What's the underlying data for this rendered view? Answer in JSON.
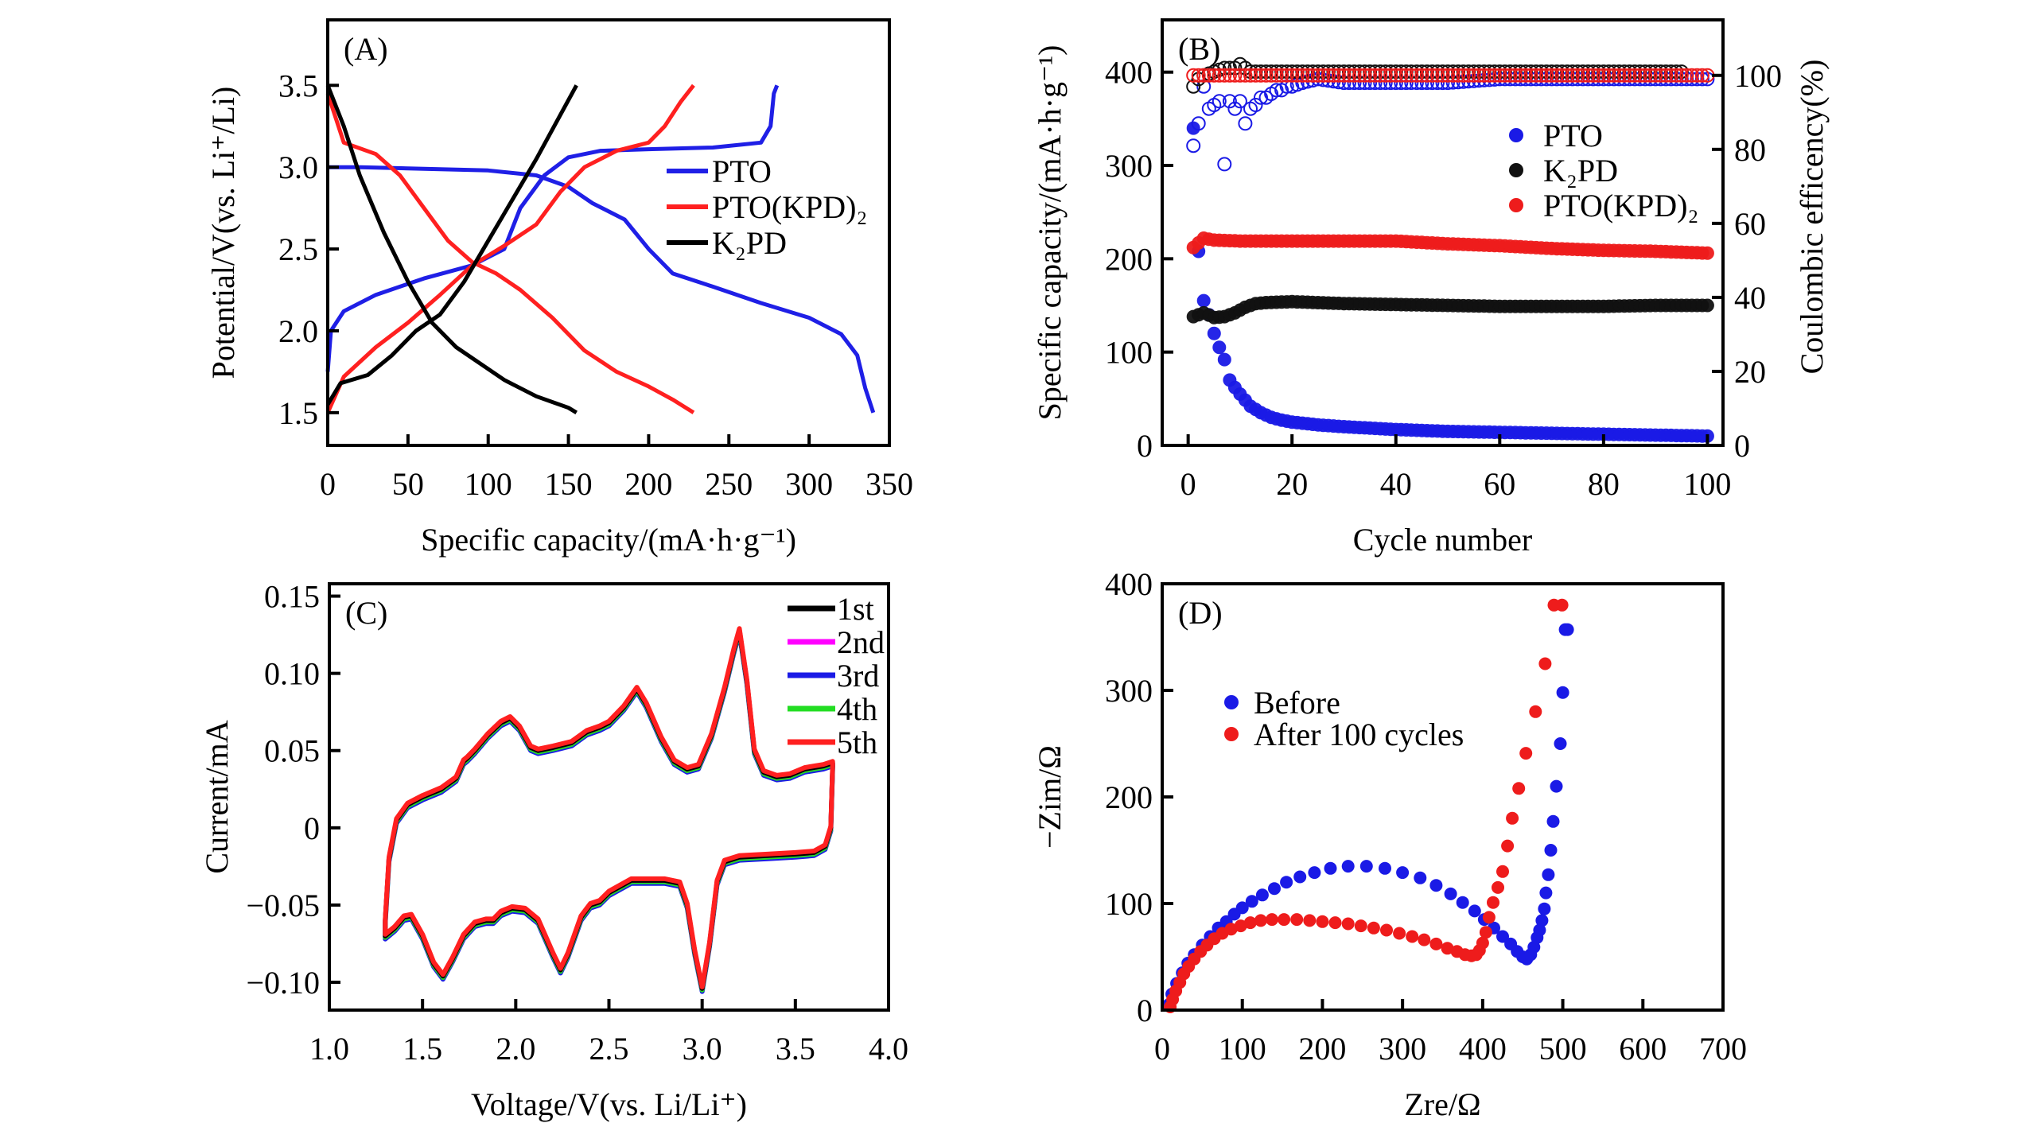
{
  "chart_data": [
    {
      "id": "A",
      "type": "line",
      "panel_label": "(A)",
      "xlabel": "Specific capacity/(mA·h·g⁻¹)",
      "ylabel": "Potential/V(vs. Li⁺/Li)",
      "xlim": [
        0,
        350
      ],
      "ylim": [
        1.3,
        3.9
      ],
      "xticks": [
        0,
        50,
        100,
        150,
        200,
        250,
        300,
        350
      ],
      "xtick_labels": [
        "0",
        "50",
        "100",
        "150",
        "200",
        "250",
        "300",
        "350"
      ],
      "yticks": [
        1.5,
        2.0,
        2.5,
        3.0,
        3.5
      ],
      "ytick_labels": [
        "1.5",
        "2.0",
        "2.5",
        "3.0",
        "3.5"
      ],
      "legend": "center-right",
      "series": [
        {
          "name": "PTO",
          "label": "PTO",
          "color": "#1f1fe6",
          "segment": "discharge",
          "x": [
            0,
            20,
            60,
            100,
            130,
            150,
            165,
            185,
            200,
            215,
            240,
            270,
            300,
            320,
            330,
            335,
            340
          ],
          "y": [
            3.0,
            3.0,
            2.99,
            2.98,
            2.95,
            2.88,
            2.78,
            2.68,
            2.5,
            2.35,
            2.27,
            2.17,
            2.08,
            1.98,
            1.85,
            1.65,
            1.5
          ]
        },
        {
          "name": "PTO-charge",
          "label": "",
          "color": "#1f1fe6",
          "segment": "charge",
          "x": [
            0,
            2,
            10,
            30,
            60,
            90,
            110,
            120,
            135,
            150,
            170,
            200,
            240,
            270,
            276,
            278,
            280
          ],
          "y": [
            1.75,
            2.0,
            2.12,
            2.22,
            2.32,
            2.4,
            2.5,
            2.75,
            2.95,
            3.06,
            3.1,
            3.11,
            3.12,
            3.15,
            3.25,
            3.45,
            3.5
          ]
        },
        {
          "name": "PTO(KPD)2",
          "label": "PTO(KPD)₂",
          "color": "#ff2020",
          "segment": "discharge",
          "x": [
            0,
            10,
            30,
            45,
            60,
            75,
            90,
            105,
            120,
            140,
            160,
            180,
            200,
            215,
            228
          ],
          "y": [
            3.45,
            3.15,
            3.08,
            2.95,
            2.75,
            2.55,
            2.42,
            2.35,
            2.25,
            2.08,
            1.88,
            1.75,
            1.66,
            1.58,
            1.5
          ]
        },
        {
          "name": "PTO(KPD)2-charge",
          "label": "",
          "color": "#ff2020",
          "segment": "charge",
          "x": [
            0,
            10,
            30,
            50,
            70,
            90,
            110,
            130,
            145,
            160,
            180,
            200,
            210,
            220,
            228
          ],
          "y": [
            1.5,
            1.72,
            1.9,
            2.05,
            2.22,
            2.4,
            2.52,
            2.65,
            2.85,
            3.0,
            3.1,
            3.15,
            3.25,
            3.4,
            3.5
          ]
        },
        {
          "name": "K2PD",
          "label": "K₂PD",
          "color": "#000000",
          "segment": "discharge",
          "x": [
            0,
            10,
            20,
            35,
            50,
            65,
            80,
            95,
            110,
            130,
            150,
            155
          ],
          "y": [
            3.5,
            3.25,
            2.95,
            2.6,
            2.3,
            2.05,
            1.9,
            1.8,
            1.7,
            1.6,
            1.53,
            1.5
          ]
        },
        {
          "name": "K2PD-charge",
          "label": "",
          "color": "#000000",
          "segment": "charge",
          "x": [
            0,
            8,
            25,
            40,
            55,
            70,
            85,
            100,
            115,
            130,
            145,
            155
          ],
          "y": [
            1.55,
            1.68,
            1.73,
            1.85,
            2.0,
            2.1,
            2.3,
            2.55,
            2.8,
            3.05,
            3.32,
            3.5
          ]
        }
      ]
    },
    {
      "id": "B",
      "type": "scatter",
      "panel_label": "(B)",
      "xlabel": "Cycle number",
      "ylabel": "Specific capacity/(mA·h·g⁻¹)",
      "ylabel_right": "Coulombic efficency(%)",
      "xlim": [
        -5,
        103
      ],
      "ylim": [
        0,
        456
      ],
      "ylim_right": [
        0,
        115
      ],
      "xticks": [
        0,
        20,
        40,
        60,
        80,
        100
      ],
      "xtick_labels": [
        "0",
        "20",
        "40",
        "60",
        "80",
        "100"
      ],
      "yticks": [
        0,
        100,
        200,
        300,
        400
      ],
      "ytick_labels": [
        "0",
        "100",
        "200",
        "300",
        "400"
      ],
      "yticks_right": [
        0,
        20,
        40,
        60,
        80,
        100
      ],
      "ytick_labels_right": [
        "0",
        "20",
        "40",
        "60",
        "80",
        "100"
      ],
      "legend": "center-right",
      "legend_entries": [
        {
          "label": "PTO",
          "color": "#1a1ae6"
        },
        {
          "label": "K₂PD",
          "color": "#111111"
        },
        {
          "label": "PTO(KPD)₂",
          "color": "#ee1c1c"
        }
      ],
      "capacity_series": [
        {
          "name": "PTO",
          "color": "#1a1ae6",
          "x": [
            1,
            2,
            3,
            4,
            5,
            6,
            7,
            8,
            9,
            10,
            12,
            14,
            16,
            18,
            20,
            25,
            30,
            40,
            50,
            60,
            70,
            80,
            90,
            100
          ],
          "y": [
            340,
            208,
            155,
            140,
            120,
            105,
            92,
            70,
            62,
            55,
            42,
            35,
            30,
            27,
            25,
            22,
            20,
            17,
            15,
            14,
            13,
            12,
            11,
            10
          ]
        },
        {
          "name": "K2PD",
          "color": "#111111",
          "x": [
            1,
            3,
            5,
            7,
            9,
            11,
            13,
            15,
            20,
            25,
            30,
            40,
            50,
            60,
            70,
            80,
            90,
            100
          ],
          "y": [
            138,
            142,
            137,
            138,
            142,
            148,
            152,
            153,
            154,
            153,
            152,
            151,
            150,
            149,
            149,
            149,
            150,
            150
          ]
        },
        {
          "name": "PTO(KPD)2",
          "color": "#ee1c1c",
          "x": [
            1,
            3,
            5,
            10,
            20,
            30,
            40,
            50,
            60,
            70,
            80,
            90,
            100
          ],
          "y": [
            212,
            222,
            220,
            219,
            219,
            219,
            219,
            216,
            214,
            211,
            209,
            208,
            206
          ]
        }
      ],
      "efficiency_series": [
        {
          "name": "PTO-CE",
          "color": "#1a1ae6",
          "x": [
            1,
            2,
            3,
            4,
            5,
            6,
            7,
            8,
            9,
            10,
            11,
            12,
            13,
            14,
            15,
            16,
            17,
            18,
            19,
            20,
            22,
            25,
            30,
            40,
            50,
            60,
            70,
            80,
            90,
            100
          ],
          "y": [
            81,
            87,
            97,
            91,
            92,
            93,
            76,
            93,
            91,
            93,
            87,
            91,
            92,
            94,
            94,
            95,
            96,
            96,
            97,
            97,
            98,
            99,
            98,
            98,
            98,
            99,
            99,
            99,
            99,
            99
          ]
        },
        {
          "name": "K2PD-CE",
          "color": "#111111",
          "x": [
            1,
            2,
            3,
            5,
            7,
            9,
            10,
            12,
            15,
            20,
            30,
            40,
            50,
            60,
            70,
            80,
            90,
            95
          ],
          "y": [
            97,
            99,
            100,
            101,
            102,
            102,
            103,
            101,
            101,
            101,
            101,
            101,
            101,
            101,
            101,
            101,
            101,
            101
          ]
        },
        {
          "name": "PTO(KPD)2-CE",
          "color": "#ee1c1c",
          "x": [
            1,
            3,
            5,
            10,
            20,
            30,
            40,
            50,
            60,
            70,
            80,
            90,
            100
          ],
          "y": [
            100,
            100,
            100,
            100,
            100,
            100,
            100,
            100,
            100,
            100,
            100,
            100,
            100
          ]
        }
      ]
    },
    {
      "id": "C",
      "type": "line",
      "panel_label": "(C)",
      "xlabel": "Voltage/V(vs. Li/Li⁺)",
      "ylabel": "Current/mA",
      "xlim": [
        1.0,
        4.0
      ],
      "ylim": [
        -0.118,
        0.158
      ],
      "xticks": [
        1.0,
        1.5,
        2.0,
        2.5,
        3.0,
        3.5,
        4.0
      ],
      "xtick_labels": [
        "1.0",
        "1.5",
        "2.0",
        "2.5",
        "3.0",
        "3.5",
        "4.0"
      ],
      "yticks": [
        -0.1,
        -0.05,
        0,
        0.05,
        0.1,
        0.15
      ],
      "ytick_labels": [
        "−0.10",
        "−0.05",
        "0",
        "0.05",
        "0.10",
        "0.15"
      ],
      "legend": "top-right",
      "cycle_path": {
        "anodic_x": [
          1.3,
          1.32,
          1.36,
          1.42,
          1.5,
          1.6,
          1.68,
          1.72,
          1.74,
          1.78,
          1.85,
          1.92,
          1.97,
          2.02,
          2.08,
          2.12,
          2.2,
          2.3,
          2.38,
          2.45,
          2.5,
          2.58,
          2.65,
          2.7,
          2.78,
          2.85,
          2.92,
          2.98,
          3.05,
          3.12,
          3.17,
          3.2,
          3.24,
          3.28,
          3.33,
          3.4,
          3.47,
          3.55,
          3.65,
          3.7
        ],
        "anodic_y": [
          -0.06,
          -0.02,
          0.005,
          0.015,
          0.02,
          0.025,
          0.032,
          0.043,
          0.045,
          0.05,
          0.06,
          0.068,
          0.071,
          0.065,
          0.052,
          0.05,
          0.052,
          0.055,
          0.062,
          0.065,
          0.068,
          0.078,
          0.09,
          0.08,
          0.058,
          0.043,
          0.038,
          0.04,
          0.06,
          0.09,
          0.115,
          0.128,
          0.095,
          0.05,
          0.036,
          0.033,
          0.034,
          0.038,
          0.04,
          0.042
        ],
        "cathodic_x": [
          3.7,
          3.69,
          3.66,
          3.6,
          3.5,
          3.35,
          3.2,
          3.12,
          3.08,
          3.04,
          3.0,
          2.96,
          2.92,
          2.88,
          2.8,
          2.7,
          2.62,
          2.5,
          2.45,
          2.4,
          2.35,
          2.28,
          2.24,
          2.2,
          2.12,
          2.05,
          1.98,
          1.92,
          1.88,
          1.84,
          1.78,
          1.72,
          1.66,
          1.61,
          1.56,
          1.5,
          1.44,
          1.4,
          1.35,
          1.3
        ],
        "cathodic_y": [
          0.04,
          0.0,
          -0.012,
          -0.016,
          -0.017,
          -0.018,
          -0.019,
          -0.022,
          -0.035,
          -0.075,
          -0.104,
          -0.08,
          -0.05,
          -0.036,
          -0.034,
          -0.034,
          -0.034,
          -0.042,
          -0.048,
          -0.05,
          -0.058,
          -0.082,
          -0.092,
          -0.082,
          -0.06,
          -0.053,
          -0.052,
          -0.055,
          -0.06,
          -0.06,
          -0.062,
          -0.07,
          -0.085,
          -0.096,
          -0.088,
          -0.07,
          -0.057,
          -0.058,
          -0.065,
          -0.07
        ]
      },
      "series": [
        {
          "name": "1st",
          "label": "1st",
          "color": "#000000",
          "dy": 0.0
        },
        {
          "name": "2nd",
          "label": "2nd",
          "color": "#ff00ff",
          "dy": 0.0
        },
        {
          "name": "3rd",
          "label": "3rd",
          "color": "#1a1ae6",
          "dy": -0.002
        },
        {
          "name": "4th",
          "label": "4th",
          "color": "#22dd22",
          "dy": -0.001
        },
        {
          "name": "5th",
          "label": "5th",
          "color": "#ff2020",
          "dy": 0.001
        }
      ]
    },
    {
      "id": "D",
      "type": "scatter",
      "panel_label": "(D)",
      "xlabel": "Zre/Ω",
      "ylabel": "−Zim/Ω",
      "xlim": [
        0,
        700
      ],
      "ylim": [
        0,
        400
      ],
      "xticks": [
        0,
        100,
        200,
        300,
        400,
        500,
        600,
        700
      ],
      "xtick_labels": [
        "0",
        "100",
        "200",
        "300",
        "400",
        "500",
        "600",
        "700"
      ],
      "yticks": [
        0,
        100,
        200,
        300,
        400
      ],
      "ytick_labels": [
        "0",
        "100",
        "200",
        "300",
        "400"
      ],
      "legend": "top-left",
      "series": [
        {
          "name": "Before",
          "label": "Before",
          "color": "#1a1ae6",
          "x": [
            8,
            12,
            18,
            25,
            32,
            40,
            50,
            60,
            70,
            80,
            90,
            100,
            112,
            125,
            140,
            155,
            172,
            190,
            210,
            232,
            255,
            278,
            300,
            322,
            342,
            360,
            375,
            390,
            402,
            414,
            425,
            435,
            443,
            450,
            455,
            460,
            464,
            468,
            471,
            474,
            477,
            479,
            482,
            485,
            488,
            492,
            497,
            500,
            503,
            506
          ],
          "y": [
            5,
            15,
            25,
            35,
            44,
            52,
            61,
            69,
            77,
            83,
            90,
            96,
            102,
            108,
            114,
            120,
            125,
            129,
            133,
            135,
            135,
            133,
            129,
            124,
            117,
            109,
            101,
            93,
            85,
            77,
            69,
            62,
            55,
            50,
            48,
            52,
            59,
            68,
            75,
            84,
            95,
            110,
            127,
            150,
            177,
            210,
            250,
            298,
            357,
            357
          ]
        },
        {
          "name": "After 100 cycles",
          "label": "After 100 cycles",
          "color": "#ee1c1c",
          "x": [
            10,
            13,
            17,
            22,
            27,
            33,
            40,
            48,
            56,
            65,
            75,
            86,
            98,
            110,
            123,
            137,
            152,
            168,
            184,
            200,
            216,
            232,
            248,
            264,
            280,
            296,
            312,
            327,
            342,
            356,
            368,
            378,
            386,
            392,
            396,
            400,
            404,
            408,
            413,
            419,
            425,
            431,
            437,
            445,
            454,
            466,
            478,
            489,
            499
          ],
          "y": [
            3,
            10,
            18,
            26,
            34,
            41,
            48,
            55,
            61,
            67,
            72,
            76,
            79,
            82,
            84,
            85,
            85,
            85,
            84,
            83,
            82,
            81,
            79,
            77,
            75,
            72,
            69,
            66,
            62,
            58,
            55,
            52,
            51,
            52,
            56,
            63,
            73,
            87,
            101,
            115,
            130,
            154,
            180,
            208,
            241,
            280,
            325,
            380,
            380
          ]
        }
      ]
    }
  ]
}
